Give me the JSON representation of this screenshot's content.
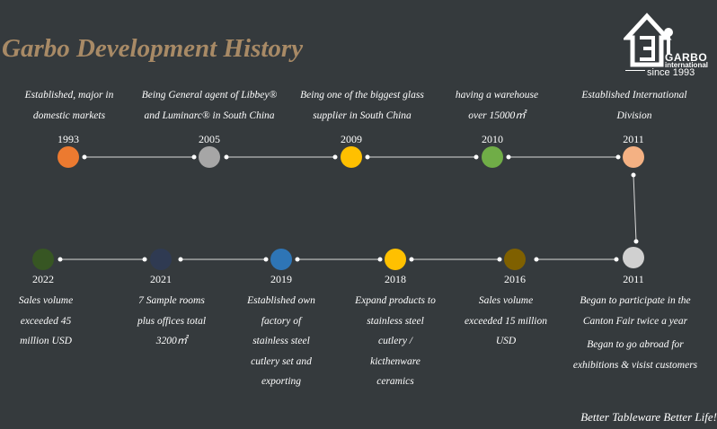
{
  "title": "Garbo Development History",
  "logo": {
    "brand_line1": "GARBO",
    "brand_line2": "international",
    "since": "since 1993"
  },
  "slogan": "Better Tableware Better Life!",
  "colors": {
    "background": "#353a3d",
    "title": "#a88a66",
    "1993": "#ec7a30",
    "2005": "#a6a6a6",
    "2009": "#ffc000",
    "2010": "#70ad47",
    "2011_top": "#f4b183",
    "2011_bottom": "#d0d0d0",
    "2016": "#7f6000",
    "2018": "#ffc000",
    "2019": "#2e75b6",
    "2021": "#2f3a52",
    "2022": "#375623"
  },
  "milestones": [
    {
      "year": "1993",
      "lines": [
        "Established, major in",
        "domestic markets"
      ]
    },
    {
      "year": "2005",
      "lines": [
        "Being General agent of Libbey®",
        "and Luminarc® in South China"
      ]
    },
    {
      "year": "2009",
      "lines": [
        "Being one of the biggest glass",
        "supplier in South China"
      ]
    },
    {
      "year": "2010",
      "lines": [
        "having a warehouse",
        "over 15000㎡"
      ]
    },
    {
      "year": "2011",
      "lines": [
        "Established International",
        "Division"
      ]
    },
    {
      "year": "2011",
      "lines": [
        "Began to participate in the",
        "Canton Fair twice a year",
        "Began to go abroad for",
        "exhibitions & visist customers"
      ]
    },
    {
      "year": "2016",
      "lines": [
        "Sales volume",
        "exceeded 15 million",
        "USD"
      ]
    },
    {
      "year": "2018",
      "lines": [
        "Expand products to",
        "stainless steel",
        "cutlery /",
        "kicthenware",
        "ceramics"
      ]
    },
    {
      "year": "2019",
      "lines": [
        "Established own",
        "factory of",
        "stainless steel",
        "cutlery set and",
        "exporting"
      ]
    },
    {
      "year": "2021",
      "lines": [
        "7 Sample rooms",
        "plus offices total",
        "3200㎡"
      ]
    },
    {
      "year": "2022",
      "lines": [
        "Sales volume",
        "exceeded 45",
        "million USD"
      ]
    }
  ]
}
